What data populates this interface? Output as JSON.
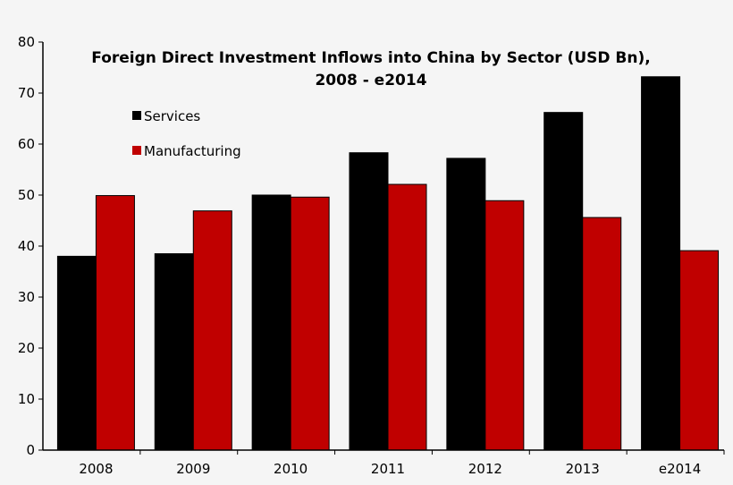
{
  "chart_data": {
    "type": "bar",
    "title": "Foreign Direct Investment Inflows into China by Sector (USD Bn),",
    "subtitle": "2008 - e2014",
    "xlabel": "",
    "ylabel": "",
    "ylim": [
      0,
      80
    ],
    "yticks": [
      "0",
      "10",
      "20",
      "30",
      "40",
      "50",
      "60",
      "70",
      "80"
    ],
    "categories": [
      "2008",
      "2009",
      "2010",
      "2011",
      "2012",
      "2013",
      "e2014"
    ],
    "series": [
      {
        "name": "Services",
        "color": "#000000",
        "values": [
          38.0,
          38.5,
          50.0,
          58.3,
          57.2,
          66.2,
          73.2
        ]
      },
      {
        "name": "Manufacturing",
        "color": "#c00000",
        "values": [
          49.9,
          46.9,
          49.6,
          52.1,
          48.9,
          45.6,
          39.1
        ]
      }
    ],
    "grid": false,
    "legend_position": "top-left"
  }
}
